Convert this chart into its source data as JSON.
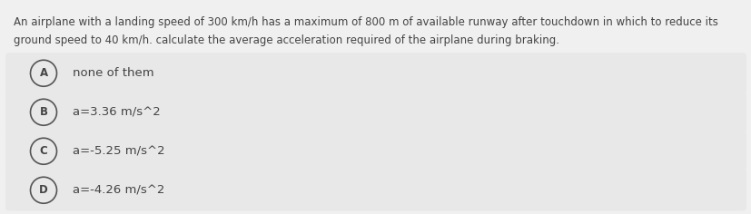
{
  "question_line1": "An airplane with a landing speed of 300 km/h has a maximum of 800 m of available runway after touchdown in which to reduce its",
  "question_line2": "ground speed to 40 km/h. calculate the average acceleration required of the airplane during braking.",
  "options": [
    {
      "label": "A",
      "text": "none of them"
    },
    {
      "label": "B",
      "text": "a=3.36 m/s^2"
    },
    {
      "label": "C",
      "text": "a=-5.25 m/s^2"
    },
    {
      "label": "D",
      "text": "a=-4.26 m/s^2"
    }
  ],
  "bg_color": "#f0f0f0",
  "option_bg_color": "#e8e8e8",
  "text_color": "#444444",
  "circle_edge_color": "#555555",
  "font_size_question": 8.5,
  "font_size_option": 9.5,
  "font_size_label": 8.5
}
